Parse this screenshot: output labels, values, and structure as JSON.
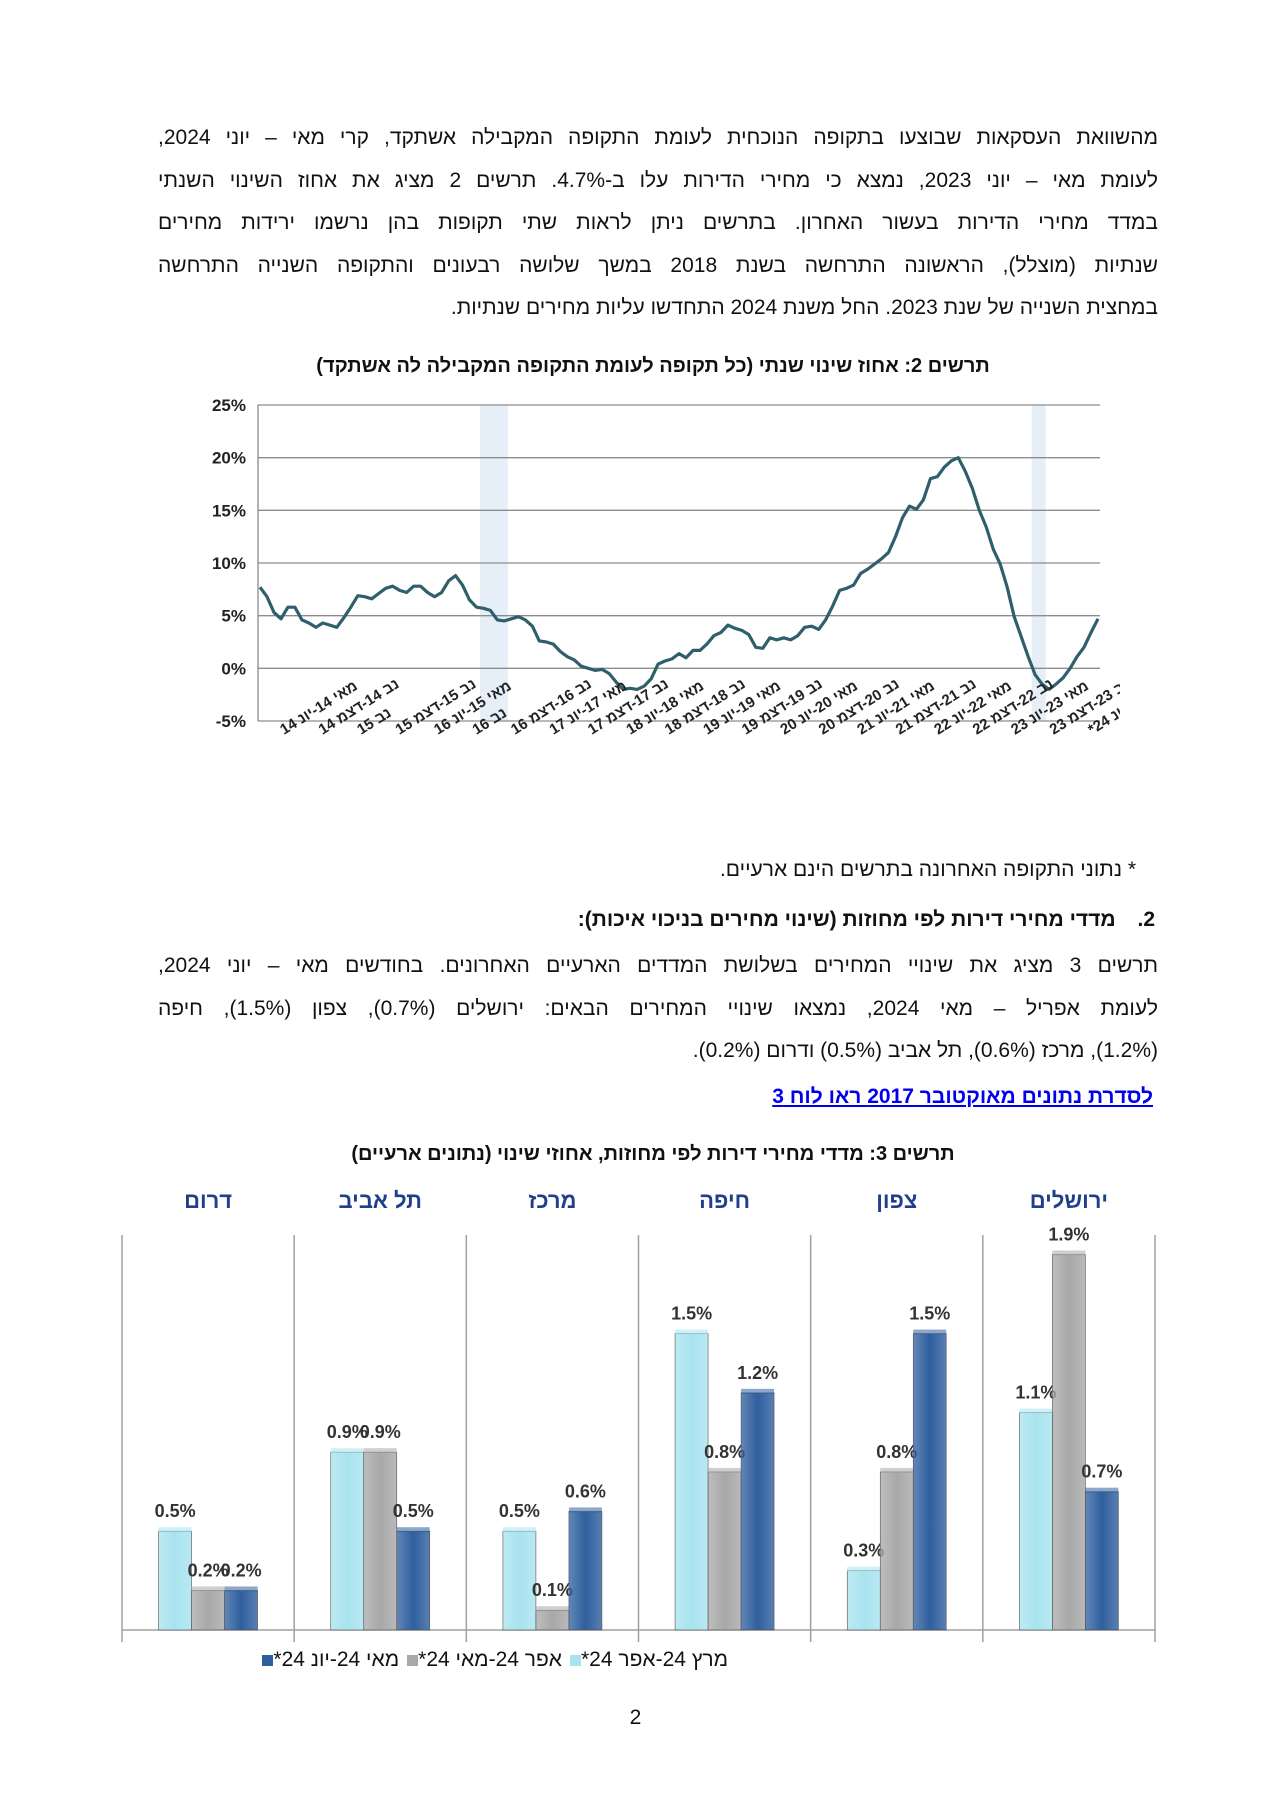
{
  "paragraph1": [
    "מהשוואת העסקאות שבוצעו בתקופה הנוכחית לעומת התקופה המקבילה אשתקד, קרי מאי – יוני 2024,",
    "לעומת מאי – יוני 2023, נמצא כי מחירי הדירות עלו ב-4.7%. תרשים 2 מציג את אחוז השינוי השנתי",
    "במדד מחירי הדירות בעשור האחרון. בתרשים ניתן לראות שתי תקופות בהן נרשמו ירידות מחירים",
    "שנתיות (מוצלל), הראשונה התרחשה בשנת 2018 במשך שלושה רבעונים והתקופה השנייה התרחשה",
    "במחצית השנייה של שנת 2023. החל משנת 2024 התחדשו עליות מחירים שנתיות."
  ],
  "chart2_title": "תרשים 2: אחוז שינוי שנתי (כל תקופה לעומת התקופה המקבילה לה אשתקד)",
  "chart2_ytick_labels": [
    "25%",
    "20%",
    "15%",
    "10%",
    "5%",
    "0%",
    "-5%"
  ],
  "note": "* נתוני התקופה האחרונה בתרשים הינם ארעיים.",
  "section2": {
    "number": "2.",
    "title": "מדדי מחירי דירות לפי מחוזות (שינוי מחירים בניכוי איכות):"
  },
  "paragraph2": [
    "תרשים 3 מציג את שינויי המחירים בשלושת המדדים הארעיים האחרונים. בחודשים מאי – יוני 2024,",
    "לעומת אפריל – מאי 2024, נמצאו שינויי המחירים הבאים: ירושלים (0.7%), צפון (1.5%), חיפה",
    "(1.2%), מרכז (0.6%), תל אביב (0.5%) ודרום (0.2%)."
  ],
  "link": "לסדרת נתונים מאוקטובר 2017 ראו לוח 3",
  "chart3_title": "תרשים 3: מדדי מחירי דירות לפי מחוזות, אחוזי שינוי (נתונים ארעיים)",
  "page_number": "2",
  "chart_data": [
    {
      "type": "line",
      "title": "תרשים 2: אחוז שינוי שנתי (כל תקופה לעומת התקופה המקבילה לה אשתקד)",
      "ylim": [
        -5,
        25
      ],
      "yticks": [
        -5,
        0,
        5,
        10,
        15,
        20,
        25
      ],
      "grid": true,
      "x_tick_labels": [
        "מאי 14-יונ 14",
        "נב 14-דצמ 14",
        "נב 15",
        "נב 15-דצמ 15",
        "מאי 15-יונ 16",
        "נב 16",
        "נב 16-דצמ 16",
        "מאי 17-יונ 17",
        "נב 17-דצמ 17",
        "מאי 18-יונ 18",
        "נב 18-דצמ 18",
        "מאי 19-יונ 19",
        "נב 19-דצמ 19",
        "מאי 20-יונ 20",
        "נב 20-דצמ 20",
        "מאי 21-יונ 21",
        "נב 21-דצמ 21",
        "מאי 22-יונ 22",
        "נב 22-דצמ 22",
        "מאי 23-יונ 23",
        "נב 23-דצמ 23",
        "מאי 24-יונ 24*"
      ],
      "shaded_periods": [
        [
          31.5,
          35.5
        ],
        [
          110.5,
          112.5
        ]
      ],
      "series": [
        {
          "color": "#2f5f6b",
          "values": [
            7.7,
            6.8,
            5.3,
            4.7,
            5.8,
            5.8,
            4.6,
            4.3,
            3.9,
            4.3,
            4.1,
            3.9,
            4.8,
            5.8,
            6.9,
            6.8,
            6.6,
            7.1,
            7.6,
            7.8,
            7.4,
            7.2,
            7.8,
            7.8,
            7.2,
            6.8,
            7.2,
            8.3,
            8.8,
            7.9,
            6.5,
            5.8,
            5.7,
            5.5,
            4.6,
            4.5,
            4.7,
            4.9,
            4.6,
            4.0,
            2.6,
            2.5,
            2.3,
            1.6,
            1.1,
            0.8,
            0.2,
            0.0,
            -0.2,
            -0.1,
            -0.5,
            -1.3,
            -2.0,
            -1.9,
            -2.0,
            -1.7,
            -1.0,
            0.4,
            0.7,
            0.9,
            1.4,
            1.0,
            1.7,
            1.7,
            2.3,
            3.1,
            3.4,
            4.1,
            3.8,
            3.6,
            3.2,
            2.0,
            1.9,
            2.9,
            2.7,
            2.9,
            2.7,
            3.1,
            3.9,
            4.0,
            3.7,
            4.6,
            5.9,
            7.4,
            7.6,
            7.9,
            9.0,
            9.4,
            9.9,
            10.4,
            11.0,
            12.5,
            14.3,
            15.4,
            15.1,
            16.0,
            18.0,
            18.2,
            19.1,
            19.7,
            20.0,
            18.7,
            17.1,
            15.0,
            13.4,
            11.3,
            9.9,
            7.7,
            4.9,
            3.0,
            1.1,
            -0.6,
            -1.5,
            -2.0,
            -1.5,
            -0.9,
            0.0,
            1.1,
            2.0,
            3.4,
            4.7
          ]
        }
      ]
    },
    {
      "type": "bar",
      "title": "תרשים 3: מדדי מחירי דירות לפי מחוזות, אחוזי שינוי (נתונים ארעיים)",
      "ylim": [
        0,
        2.1
      ],
      "categories": [
        "ירושלים",
        "צפון",
        "חיפה",
        "מרכז",
        "תל אביב",
        "דרום"
      ],
      "legend_position": "bottom",
      "series": [
        {
          "name": "מרץ 24-אפר 24*",
          "color": "#a8e3ef",
          "values": [
            1.1,
            0.3,
            1.5,
            0.5,
            0.9,
            0.5
          ],
          "labels": [
            "1.1%",
            "0.3%",
            "1.5%",
            "0.5%",
            "0.9%",
            "0.5%"
          ]
        },
        {
          "name": "אפר 24-מאי 24*",
          "color": "#a8a8a8",
          "values": [
            1.9,
            0.8,
            0.8,
            0.1,
            0.9,
            0.2
          ],
          "labels": [
            "1.9%",
            "0.8%",
            "0.8%",
            "0.1%",
            "0.9%",
            "0.2%"
          ]
        },
        {
          "name": "מאי 24-יונ 24*",
          "color": "#2f5f9e",
          "values": [
            0.7,
            1.5,
            1.2,
            0.6,
            0.5,
            0.2
          ],
          "labels": [
            "0.7%",
            "1.5%",
            "1.2%",
            "0.6%",
            "0.5%",
            "0.2%"
          ]
        }
      ]
    }
  ]
}
